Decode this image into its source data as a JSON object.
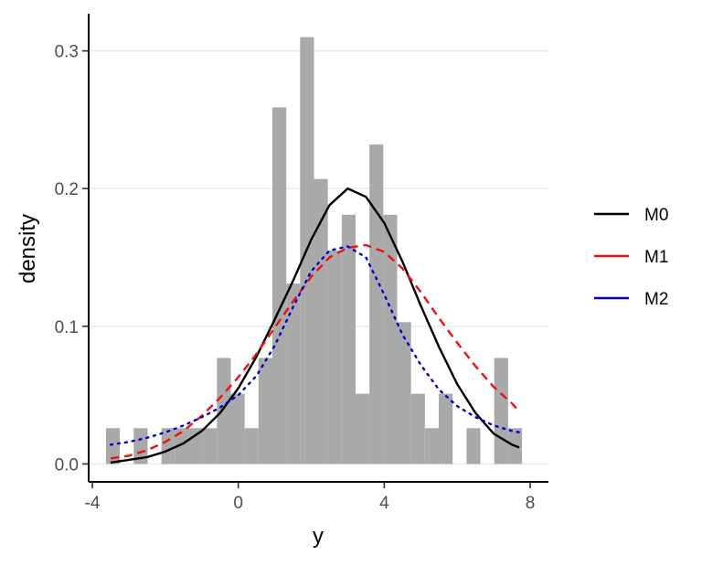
{
  "chart_data": {
    "type": "histogram",
    "xlabel": "y",
    "ylabel": "density",
    "xlim": [
      -4.1,
      8.5
    ],
    "ylim": [
      -0.013,
      0.327
    ],
    "x_ticks": [
      {
        "value": -4,
        "label": "-4"
      },
      {
        "value": 0,
        "label": "0"
      },
      {
        "value": 4,
        "label": "4"
      },
      {
        "value": 8,
        "label": "8"
      }
    ],
    "y_ticks": [
      {
        "value": 0.0,
        "label": "0.0"
      },
      {
        "value": 0.1,
        "label": "0.1"
      },
      {
        "value": 0.2,
        "label": "0.2"
      },
      {
        "value": 0.3,
        "label": "0.3"
      }
    ],
    "grid": "horizontal-major",
    "legend_position": "right",
    "bar_color": "#a9a9a9",
    "histogram": {
      "bin_start": -3.625,
      "bin_width": 0.38,
      "densities": [
        0.026,
        0,
        0.026,
        0,
        0.026,
        0.026,
        0.026,
        0.026,
        0.077,
        0.051,
        0.026,
        0.077,
        0.259,
        0.131,
        0.31,
        0.207,
        0.155,
        0.181,
        0.051,
        0.232,
        0.181,
        0.103,
        0.051,
        0.026,
        0.051,
        0,
        0.026,
        0,
        0.077,
        0.026
      ]
    },
    "series": [
      {
        "name": "M0",
        "color": "#000000",
        "dash": "solid",
        "x": [
          -3.5,
          -3.0,
          -2.5,
          -2.0,
          -1.5,
          -1.0,
          -0.5,
          0.0,
          0.5,
          1.0,
          1.5,
          2.0,
          2.5,
          3.0,
          3.5,
          4.0,
          4.5,
          5.0,
          5.5,
          6.0,
          6.5,
          7.0,
          7.5,
          7.7
        ],
        "y": [
          0.001,
          0.003,
          0.005,
          0.009,
          0.015,
          0.024,
          0.037,
          0.055,
          0.078,
          0.105,
          0.133,
          0.163,
          0.188,
          0.2,
          0.194,
          0.175,
          0.147,
          0.115,
          0.085,
          0.058,
          0.037,
          0.022,
          0.014,
          0.012
        ]
      },
      {
        "name": "M1",
        "color": "#ee1111",
        "dash": "dashed",
        "x": [
          -3.5,
          -3.0,
          -2.5,
          -2.0,
          -1.5,
          -1.0,
          -0.5,
          0.0,
          0.5,
          1.0,
          1.5,
          2.0,
          2.5,
          3.0,
          3.5,
          4.0,
          4.5,
          5.0,
          5.5,
          6.0,
          6.5,
          7.0,
          7.5,
          7.7
        ],
        "y": [
          0.004,
          0.006,
          0.01,
          0.016,
          0.024,
          0.035,
          0.048,
          0.063,
          0.08,
          0.099,
          0.118,
          0.136,
          0.15,
          0.157,
          0.159,
          0.154,
          0.142,
          0.125,
          0.106,
          0.088,
          0.071,
          0.056,
          0.044,
          0.038
        ]
      },
      {
        "name": "M2",
        "color": "#0000cc",
        "dash": "dotted",
        "x": [
          -3.5,
          -3.0,
          -2.5,
          -2.0,
          -1.5,
          -1.0,
          -0.5,
          0.0,
          0.5,
          1.0,
          1.5,
          2.0,
          2.5,
          3.0,
          3.5,
          4.0,
          4.5,
          5.0,
          5.5,
          6.0,
          6.5,
          7.0,
          7.5,
          7.7
        ],
        "y": [
          0.014,
          0.016,
          0.019,
          0.023,
          0.028,
          0.034,
          0.041,
          0.05,
          0.064,
          0.086,
          0.114,
          0.14,
          0.155,
          0.158,
          0.15,
          0.123,
          0.094,
          0.072,
          0.054,
          0.042,
          0.034,
          0.028,
          0.024,
          0.023
        ]
      }
    ]
  }
}
